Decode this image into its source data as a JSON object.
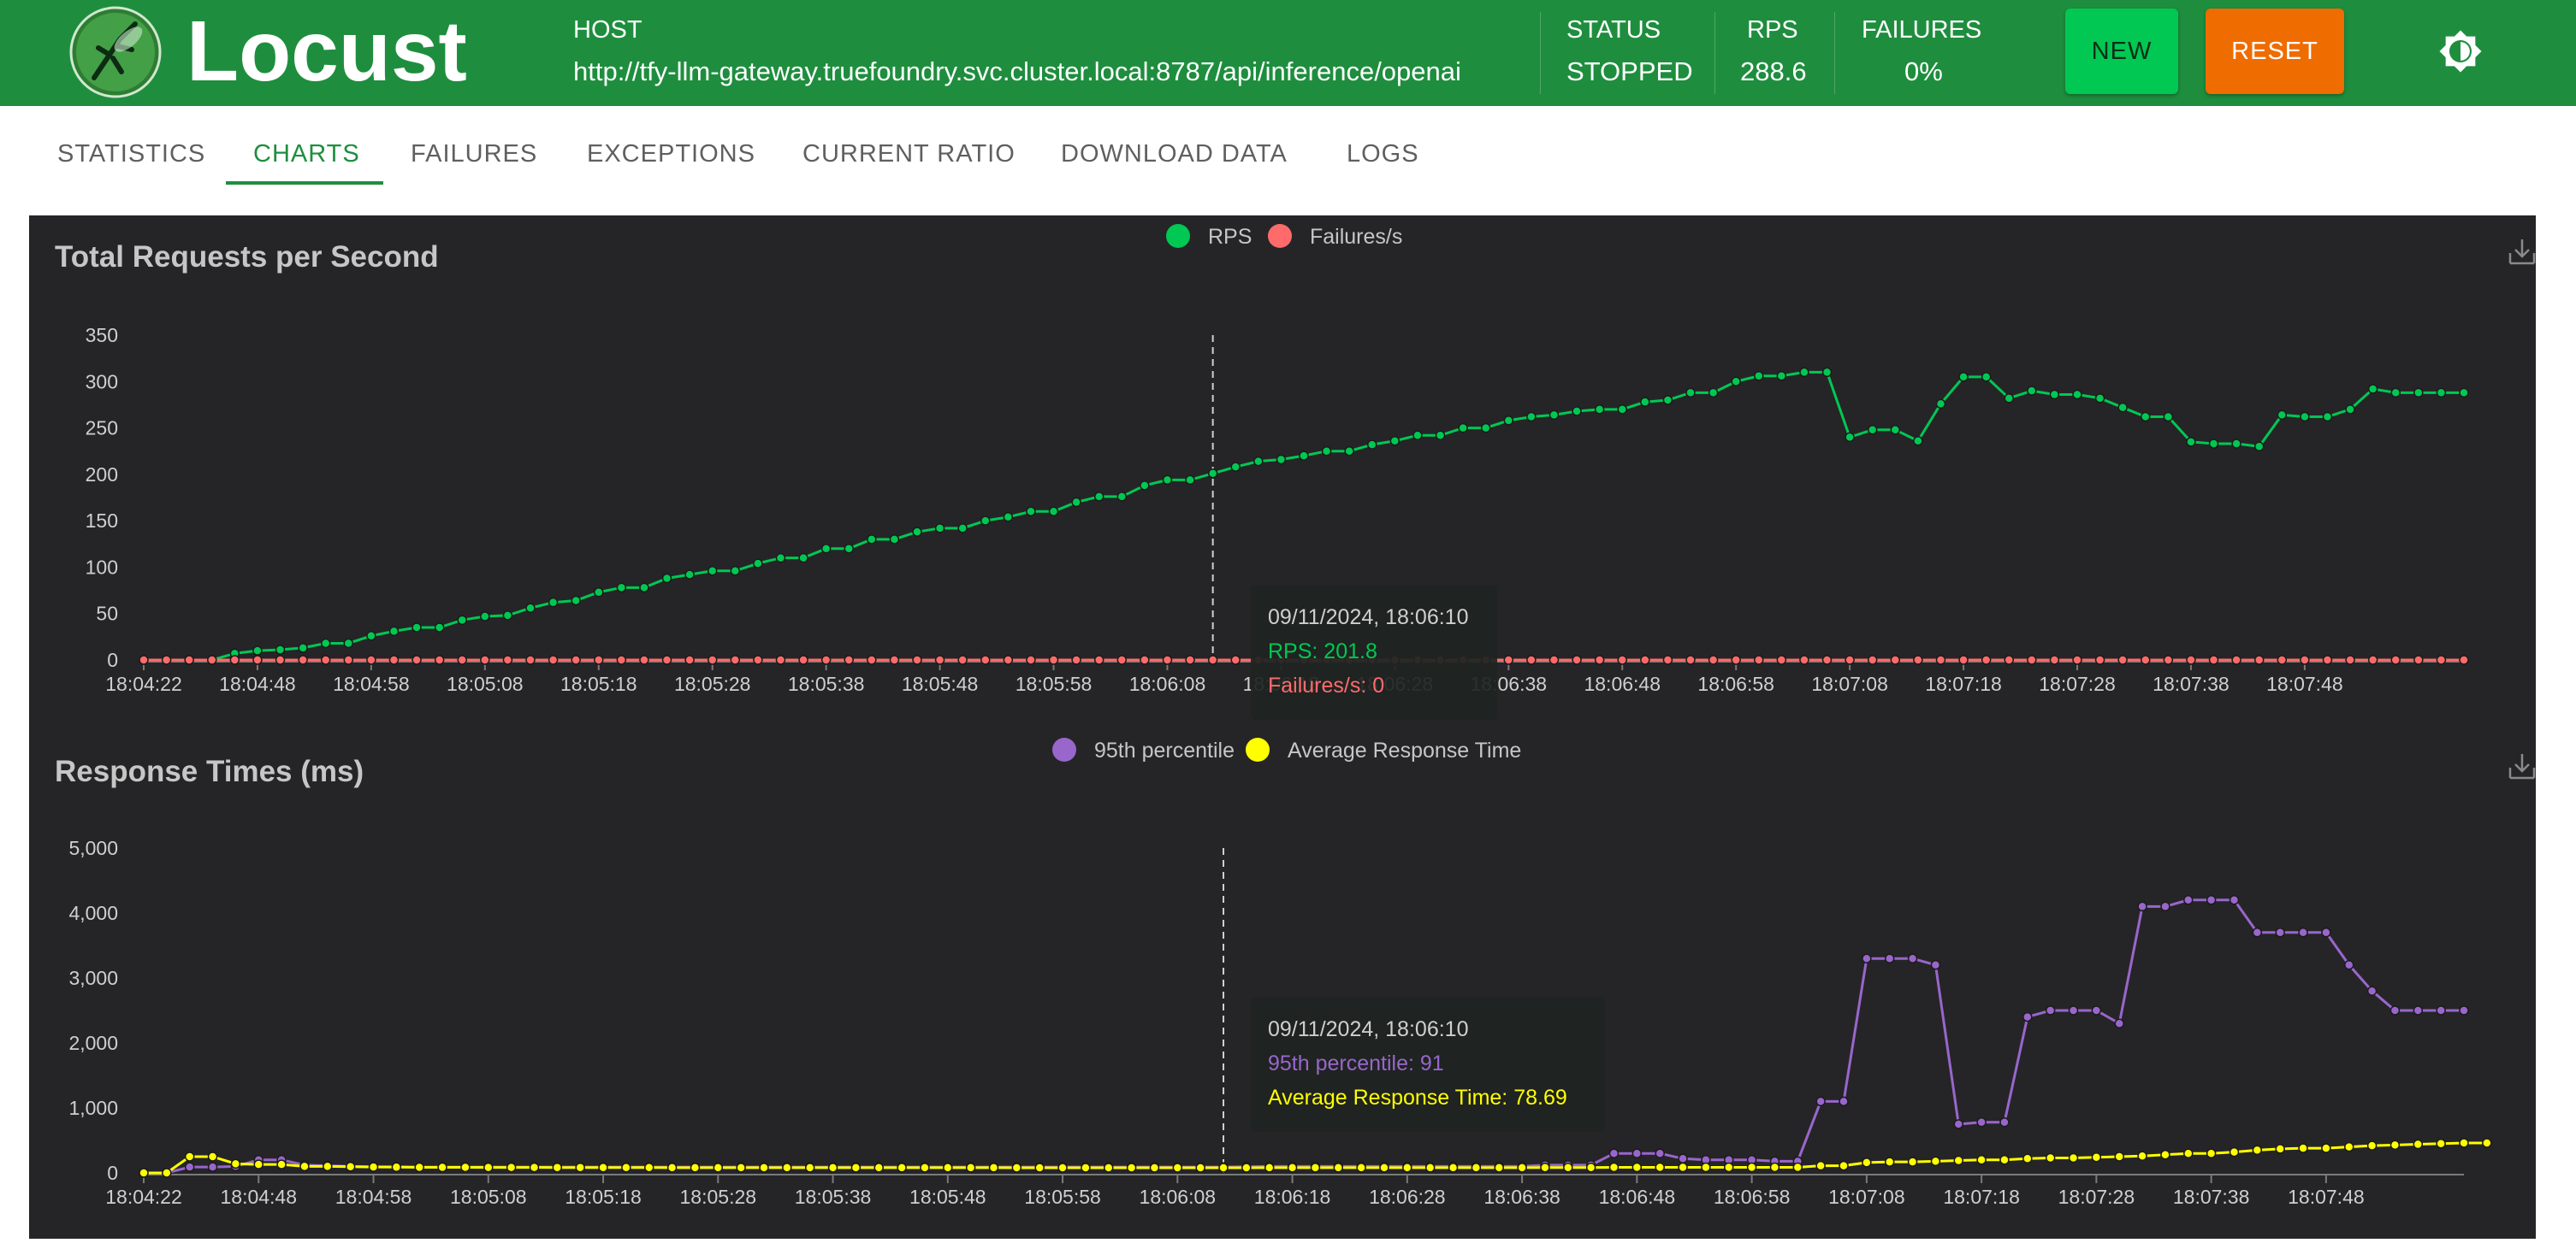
{
  "header": {
    "brand": "Locust",
    "host_label": "HOST",
    "host_value": "http://tfy-llm-gateway.truefoundry.svc.cluster.local:8787/api/inference/openai",
    "status_label": "STATUS",
    "status_value": "STOPPED",
    "rps_label": "RPS",
    "rps_value": "288.6",
    "failures_label": "FAILURES",
    "failures_value": "0%",
    "new_button": "NEW",
    "reset_button": "RESET",
    "logo_icon": "locust-logo-icon",
    "theme_icon": "brightness-icon"
  },
  "tabs": [
    {
      "label": "STATISTICS",
      "active": false
    },
    {
      "label": "CHARTS",
      "active": true
    },
    {
      "label": "FAILURES",
      "active": false
    },
    {
      "label": "EXCEPTIONS",
      "active": false
    },
    {
      "label": "CURRENT RATIO",
      "active": false
    },
    {
      "label": "DOWNLOAD DATA",
      "active": false
    },
    {
      "label": "LOGS",
      "active": false
    }
  ],
  "chart_data": [
    {
      "type": "line",
      "title": "Total Requests per Second",
      "xlabel": "",
      "ylabel": "",
      "x_tick_labels": [
        "18:04:22",
        "18:04:48",
        "18:04:58",
        "18:05:08",
        "18:05:18",
        "18:05:28",
        "18:05:38",
        "18:05:48",
        "18:05:58",
        "18:06:08",
        "18:06:18",
        "18:06:28",
        "18:06:38",
        "18:06:48",
        "18:06:58",
        "18:07:08",
        "18:07:18",
        "18:07:28",
        "18:07:38",
        "18:07:48"
      ],
      "ylim": [
        0,
        350
      ],
      "y_ticks": [
        0,
        50,
        100,
        150,
        200,
        250,
        300,
        350
      ],
      "legend_position": "top",
      "series": [
        {
          "name": "RPS",
          "color": "#00c853",
          "values": [
            0,
            0,
            0,
            0,
            7,
            10,
            11,
            13,
            18,
            18,
            26,
            31,
            35,
            35,
            43,
            47,
            48,
            56,
            62,
            64,
            73,
            78,
            78,
            88,
            92,
            96,
            96,
            104,
            110,
            110,
            120,
            120,
            130,
            130,
            138,
            142,
            142,
            150,
            154,
            160,
            160,
            170,
            176,
            176,
            188,
            194,
            194,
            201,
            208,
            214,
            216,
            220,
            225,
            225,
            232,
            236,
            242,
            242,
            250,
            250,
            258,
            262,
            264,
            268,
            270,
            270,
            278,
            280,
            288,
            288,
            300,
            306,
            306,
            310,
            310,
            240,
            248,
            248,
            236,
            276,
            305,
            305,
            282,
            290,
            286,
            286,
            282,
            272,
            262,
            262,
            235,
            233,
            233,
            230,
            264,
            262,
            262,
            270,
            292,
            288,
            288,
            288,
            288
          ]
        },
        {
          "name": "Failures/s",
          "color": "#ff6b6b",
          "values": [
            0,
            0,
            0,
            0,
            0,
            0,
            0,
            0,
            0,
            0,
            0,
            0,
            0,
            0,
            0,
            0,
            0,
            0,
            0,
            0,
            0,
            0,
            0,
            0,
            0,
            0,
            0,
            0,
            0,
            0,
            0,
            0,
            0,
            0,
            0,
            0,
            0,
            0,
            0,
            0,
            0,
            0,
            0,
            0,
            0,
            0,
            0,
            0,
            0,
            0,
            0,
            0,
            0,
            0,
            0,
            0,
            0,
            0,
            0,
            0,
            0,
            0,
            0,
            0,
            0,
            0,
            0,
            0,
            0,
            0,
            0,
            0,
            0,
            0,
            0,
            0,
            0,
            0,
            0,
            0,
            0,
            0,
            0,
            0,
            0,
            0,
            0,
            0,
            0,
            0,
            0,
            0,
            0,
            0,
            0,
            0,
            0,
            0,
            0,
            0,
            0,
            0,
            0
          ]
        }
      ],
      "hover_index": 47,
      "tooltip": {
        "time": "09/11/2024, 18:06:10",
        "line1": "RPS: 201.8",
        "line2": "Failures/s: 0"
      }
    },
    {
      "type": "line",
      "title": "Response Times (ms)",
      "xlabel": "",
      "ylabel": "",
      "x_tick_labels": [
        "18:04:22",
        "18:04:48",
        "18:04:58",
        "18:05:08",
        "18:05:18",
        "18:05:28",
        "18:05:38",
        "18:05:48",
        "18:05:58",
        "18:06:08",
        "18:06:18",
        "18:06:28",
        "18:06:38",
        "18:06:48",
        "18:06:58",
        "18:07:08",
        "18:07:18",
        "18:07:28",
        "18:07:38",
        "18:07:48"
      ],
      "ylim": [
        0,
        5000
      ],
      "y_ticks": [
        0,
        1000,
        2000,
        3000,
        4000,
        5000
      ],
      "y_tick_labels": [
        "0",
        "1,000",
        "2,000",
        "3,000",
        "4,000",
        "5,000"
      ],
      "legend_position": "top",
      "series": [
        {
          "name": "95th percentile",
          "color": "#9966cc",
          "values": [
            0,
            0,
            90,
            90,
            100,
            200,
            200,
            120,
            110,
            100,
            95,
            95,
            90,
            90,
            90,
            90,
            90,
            90,
            90,
            90,
            90,
            90,
            90,
            90,
            90,
            90,
            90,
            90,
            90,
            90,
            90,
            90,
            90,
            90,
            90,
            90,
            90,
            90,
            90,
            90,
            90,
            90,
            90,
            90,
            90,
            90,
            90,
            91,
            95,
            100,
            100,
            100,
            100,
            100,
            100,
            100,
            100,
            100,
            100,
            100,
            100,
            120,
            120,
            120,
            300,
            300,
            300,
            220,
            200,
            200,
            200,
            180,
            180,
            1100,
            1100,
            3300,
            3300,
            3300,
            3200,
            750,
            780,
            780,
            2400,
            2500,
            2500,
            2500,
            2300,
            4100,
            4100,
            4200,
            4200,
            4200,
            3700,
            3700,
            3700,
            3700,
            3200,
            2800,
            2500,
            2500,
            2500,
            2500
          ]
        },
        {
          "name": "Average Response Time",
          "color": "#ffff00",
          "values": [
            0,
            0,
            250,
            250,
            140,
            130,
            130,
            100,
            100,
            95,
            90,
            88,
            85,
            85,
            85,
            84,
            84,
            84,
            83,
            83,
            82,
            82,
            82,
            81,
            81,
            81,
            80,
            80,
            80,
            80,
            80,
            80,
            80,
            80,
            80,
            80,
            80,
            80,
            79,
            79,
            79,
            79,
            79,
            79,
            79,
            79,
            79,
            78.69,
            79,
            80,
            80,
            80,
            80,
            80,
            80,
            80,
            80,
            80,
            80,
            80,
            80,
            82,
            82,
            82,
            85,
            85,
            85,
            85,
            86,
            86,
            86,
            86,
            86,
            110,
            110,
            160,
            170,
            170,
            180,
            190,
            200,
            200,
            220,
            230,
            230,
            240,
            250,
            260,
            280,
            300,
            300,
            320,
            350,
            370,
            380,
            380,
            400,
            420,
            430,
            440,
            450,
            460,
            460
          ]
        }
      ],
      "hover_index": 47,
      "tooltip": {
        "time": "09/11/2024, 18:06:10",
        "line1": "95th percentile: 91",
        "line2": "Average Response Time: 78.69"
      }
    }
  ]
}
